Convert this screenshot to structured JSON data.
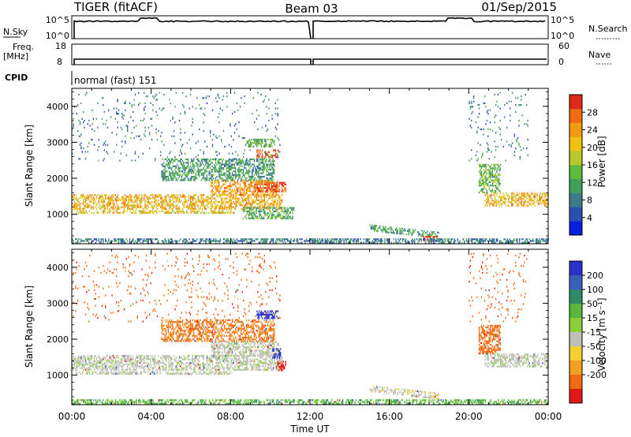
{
  "header": {
    "station": "TIGER (fitACF)",
    "beam": "Beam 03",
    "date": "01/Sep/2015"
  },
  "top_panels": {
    "nsky_label": "N.Sky",
    "nsky_ticks": [
      "10^5",
      "10^0"
    ],
    "nsearch_label": "N.Search",
    "nsearch_ticks": [
      "10^5",
      "10^0"
    ],
    "freq_label_1": "Freq.",
    "freq_label_2": "[MHz]",
    "freq_ticks": [
      "18",
      "8"
    ],
    "nave_label": "Nave",
    "nave_ticks": [
      "60",
      "0"
    ],
    "cpid_label": "CPID",
    "cpid_text": "normal (fast) 151"
  },
  "chart_data": [
    {
      "type": "heatmap",
      "name": "power-panel",
      "ylabel": "Slant Range [km]",
      "x_ticks": [
        "00:00",
        "04:00",
        "08:00",
        "12:00",
        "16:00",
        "20:00",
        "00:00"
      ],
      "y_ticks": [
        1000,
        2000,
        3000,
        4000
      ],
      "xlim_hours": [
        0,
        24
      ],
      "ylim_km": [
        180,
        4500
      ],
      "colorbar": {
        "label": "Power [dB]",
        "ticks": [
          4,
          8,
          12,
          16,
          20,
          24,
          28
        ],
        "range": [
          0,
          32
        ],
        "colors": [
          "#0a1de0",
          "#2d4fb0",
          "#3d7a8a",
          "#3fa05a",
          "#5dbb3c",
          "#b8c82a",
          "#f2c10f",
          "#f39a10",
          "#f06a12",
          "#e02a18"
        ]
      },
      "regions": [
        {
          "t0": 0.0,
          "t1": 10.6,
          "r0": 1130,
          "r1": 1560,
          "v": 22
        },
        {
          "t0": 0.2,
          "t1": 8.2,
          "r0": 1050,
          "r1": 1110,
          "v": 20
        },
        {
          "t0": 7.0,
          "t1": 10.4,
          "r0": 1550,
          "r1": 1950,
          "v": 24
        },
        {
          "t0": 9.2,
          "t1": 10.8,
          "r0": 1650,
          "r1": 1900,
          "v": 29
        },
        {
          "t0": 4.5,
          "t1": 10.2,
          "r0": 1950,
          "r1": 2550,
          "v": 11
        },
        {
          "t0": 9.3,
          "t1": 10.4,
          "r0": 2600,
          "r1": 2800,
          "v": 28
        },
        {
          "t0": 8.8,
          "t1": 10.2,
          "r0": 2900,
          "r1": 3100,
          "v": 14
        },
        {
          "t0": 8.6,
          "t1": 11.2,
          "r0": 900,
          "r1": 1200,
          "v": 13
        },
        {
          "t0": 15.0,
          "t1": 18.5,
          "r0": 330,
          "r1": 1150,
          "v": 11,
          "slope": -240
        },
        {
          "t0": 17.7,
          "t1": 18.4,
          "r0": 300,
          "r1": 400,
          "v": 28
        },
        {
          "t0": 20.8,
          "t1": 24.0,
          "r0": 1250,
          "r1": 1600,
          "v": 22
        },
        {
          "t0": 20.5,
          "t1": 21.6,
          "r0": 1600,
          "r1": 2400,
          "v": 14
        },
        {
          "t0": 0.0,
          "t1": 24.0,
          "r0": 190,
          "r1": 330,
          "v": 8
        },
        {
          "t0": 0.0,
          "t1": 10.5,
          "r0": 2500,
          "r1": 4400,
          "v": 8,
          "sparse": true
        },
        {
          "t0": 20.0,
          "t1": 23.0,
          "r0": 2500,
          "r1": 4400,
          "v": 8,
          "sparse": true
        }
      ]
    },
    {
      "type": "heatmap",
      "name": "velocity-panel",
      "ylabel": "Slant Range [km]",
      "xlabel": "Time UT",
      "x_ticks": [
        "00:00",
        "04:00",
        "08:00",
        "12:00",
        "16:00",
        "20:00",
        "00:00"
      ],
      "y_ticks": [
        1000,
        2000,
        3000,
        4000
      ],
      "xlim_hours": [
        0,
        24
      ],
      "ylim_km": [
        180,
        4500
      ],
      "colorbar": {
        "label": "Velocity [m s⁻¹]",
        "ticks": [
          "200",
          "100",
          "50",
          "15",
          "-15",
          "-50",
          "-100",
          "-200"
        ],
        "colors": [
          "#2a33c8",
          "#3a60b8",
          "#2f8a6a",
          "#58b83c",
          "#8bd03a",
          "#c0c0b8",
          "#f2d230",
          "#f3a020",
          "#f06a12",
          "#e01818"
        ]
      },
      "regions": [
        {
          "t0": 0.0,
          "t1": 10.6,
          "r0": 1130,
          "r1": 1560,
          "v": 0
        },
        {
          "t0": 0.2,
          "t1": 8.2,
          "r0": 1050,
          "r1": 1110,
          "v": 0
        },
        {
          "t0": 7.0,
          "t1": 10.4,
          "r0": 1550,
          "r1": 1950,
          "v": 0
        },
        {
          "t0": 4.5,
          "t1": 10.2,
          "r0": 1950,
          "r1": 2550,
          "v": -80
        },
        {
          "t0": 9.3,
          "t1": 10.4,
          "r0": 2600,
          "r1": 2800,
          "v": 200
        },
        {
          "t0": 10.3,
          "t1": 10.8,
          "r0": 1150,
          "r1": 1400,
          "v": -220
        },
        {
          "t0": 10.1,
          "t1": 10.5,
          "r0": 1500,
          "r1": 1750,
          "v": 220
        },
        {
          "t0": 15.0,
          "t1": 18.5,
          "r0": 330,
          "r1": 1150,
          "v": -5,
          "slope": -240
        },
        {
          "t0": 20.8,
          "t1": 24.0,
          "r0": 1250,
          "r1": 1600,
          "v": 0
        },
        {
          "t0": 20.5,
          "t1": 21.6,
          "r0": 1600,
          "r1": 2400,
          "v": -90
        },
        {
          "t0": 0.0,
          "t1": 24.0,
          "r0": 190,
          "r1": 330,
          "v": 30
        },
        {
          "t0": 0.0,
          "t1": 10.5,
          "r0": 2500,
          "r1": 4400,
          "v": -120,
          "sparse": true
        },
        {
          "t0": 20.0,
          "t1": 23.0,
          "r0": 2500,
          "r1": 4400,
          "v": -120,
          "sparse": true
        }
      ]
    }
  ]
}
